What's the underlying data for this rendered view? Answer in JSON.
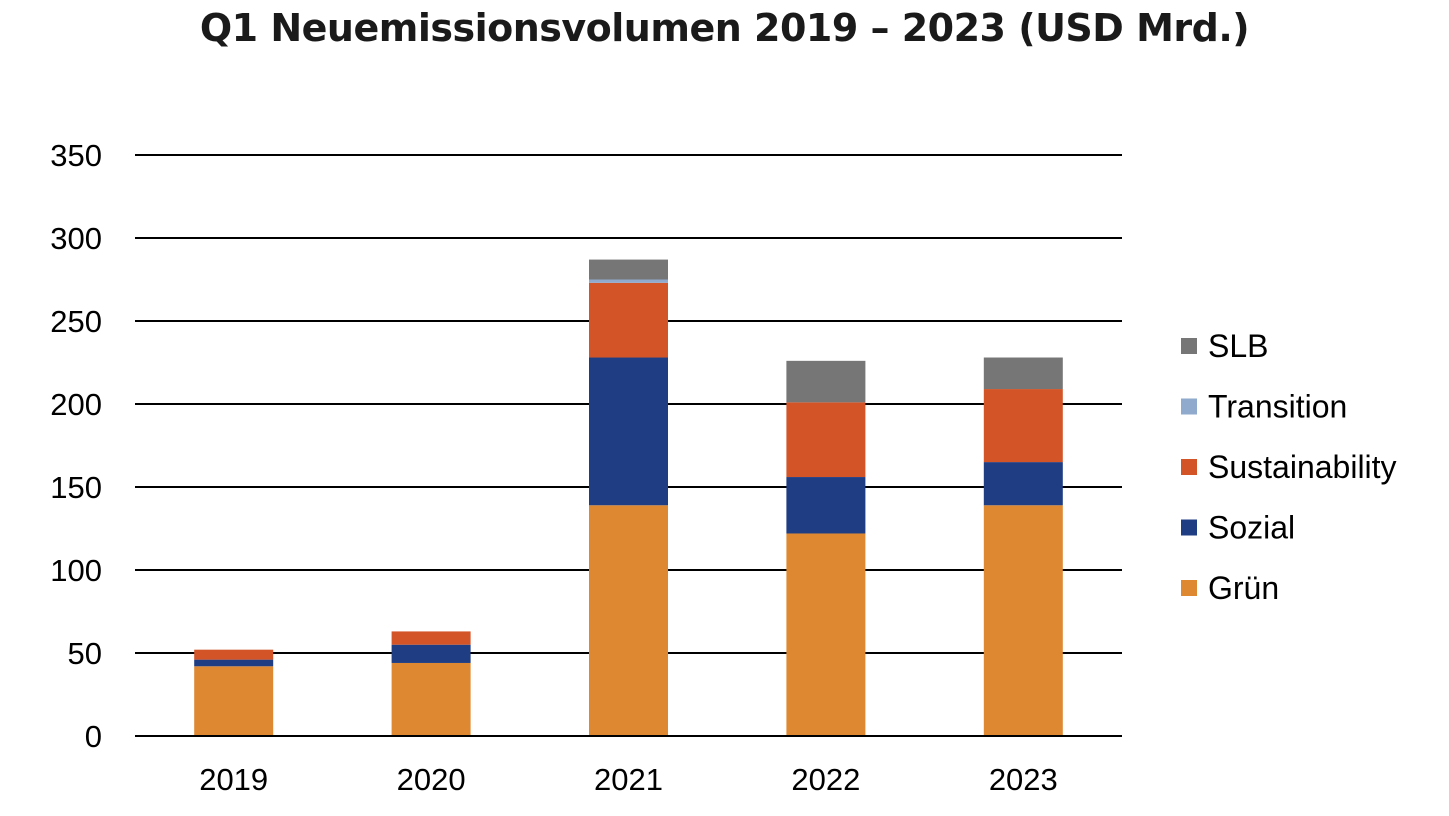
{
  "chart_data": {
    "type": "bar",
    "stacked": true,
    "title": "Q1 Neuemissionsvolumen 2019 – 2023 (USD Mrd.)",
    "xlabel": "",
    "ylabel": "",
    "categories": [
      "2019",
      "2020",
      "2021",
      "2022",
      "2023"
    ],
    "ylim": [
      0,
      350
    ],
    "yticks": [
      0,
      50,
      100,
      150,
      200,
      250,
      300,
      350
    ],
    "grid": true,
    "legend_position": "right",
    "series": [
      {
        "name": "Grün",
        "color": "#DE8932",
        "values": [
          42,
          44,
          139,
          122,
          139
        ]
      },
      {
        "name": "Sozial",
        "color": "#1F3D83",
        "values": [
          4,
          11,
          89,
          34,
          26
        ]
      },
      {
        "name": "Sustainability",
        "color": "#D35427",
        "values": [
          6,
          8,
          45,
          45,
          44
        ]
      },
      {
        "name": "Transition",
        "color": "#8FAACC",
        "values": [
          0,
          0,
          2,
          0,
          0
        ]
      },
      {
        "name": "SLB",
        "color": "#767676",
        "values": [
          0,
          0,
          12,
          25,
          19
        ]
      }
    ],
    "legend_order": [
      "SLB",
      "Transition",
      "Sustainability",
      "Sozial",
      "Grün"
    ]
  }
}
